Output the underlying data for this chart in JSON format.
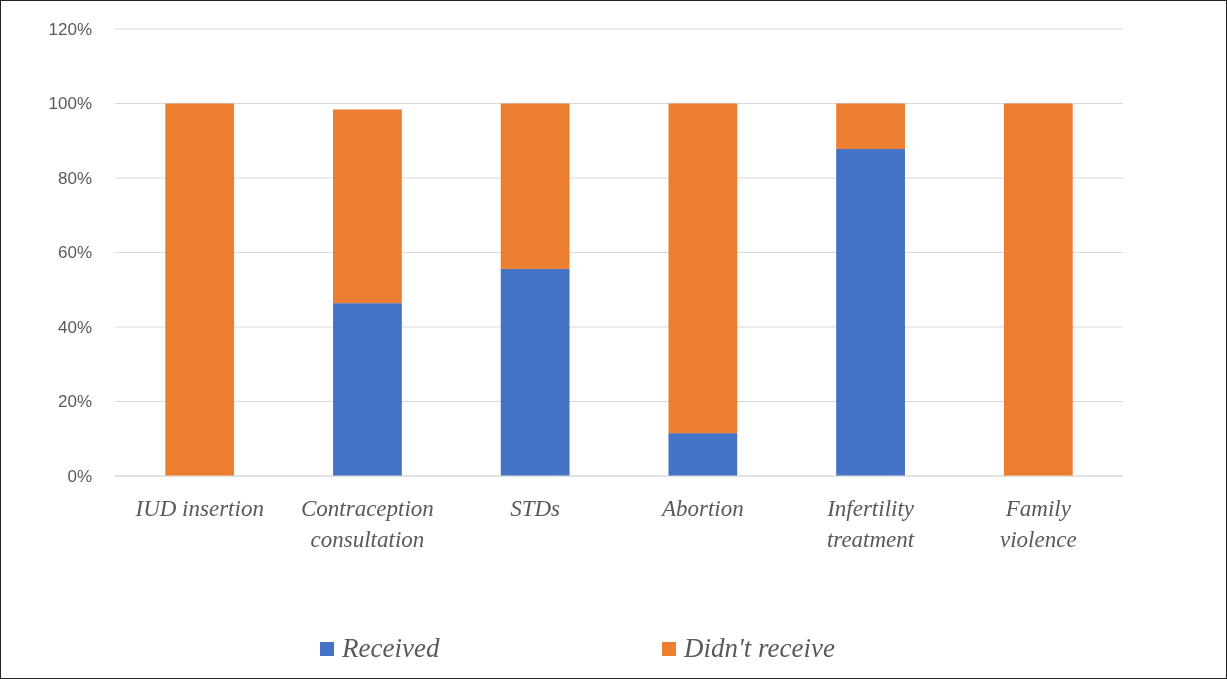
{
  "chart_data": {
    "type": "bar",
    "stacked": true,
    "categories": [
      "IUD insertion",
      "Contraception consultation",
      "STDs",
      "Abortion",
      "Infertility treatment",
      "Family violence"
    ],
    "series": [
      {
        "name": "Received",
        "color": "#4472c4",
        "values": [
          0,
          46.4,
          55.6,
          11.5,
          87.8,
          0
        ]
      },
      {
        "name": "Didn't receive",
        "color": "#ed7d31",
        "values": [
          100,
          52,
          44.4,
          88.5,
          12.2,
          100
        ]
      }
    ],
    "ylim": [
      0,
      120
    ],
    "yticks": [
      {
        "value": 0,
        "label": "0%"
      },
      {
        "value": 20,
        "label": "20%"
      },
      {
        "value": 40,
        "label": "40%"
      },
      {
        "value": 60,
        "label": "60%"
      },
      {
        "value": 80,
        "label": "80%"
      },
      {
        "value": 100,
        "label": "100%"
      },
      {
        "value": 120,
        "label": "120%"
      }
    ],
    "grid": "y",
    "legend": "bottom"
  }
}
